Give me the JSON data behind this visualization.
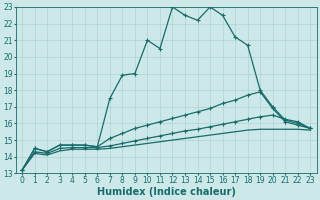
{
  "xlabel": "Humidex (Indice chaleur)",
  "xlim": [
    -0.5,
    23.5
  ],
  "ylim": [
    13,
    23
  ],
  "xticks": [
    0,
    1,
    2,
    3,
    4,
    5,
    6,
    7,
    8,
    9,
    10,
    11,
    12,
    13,
    14,
    15,
    16,
    17,
    18,
    19,
    20,
    21,
    22,
    23
  ],
  "yticks": [
    13,
    14,
    15,
    16,
    17,
    18,
    19,
    20,
    21,
    22,
    23
  ],
  "bg_color": "#cce8e8",
  "line_color": "#1a6b6b",
  "grid_color": "#aacccc",
  "line1_y": [
    13.2,
    14.5,
    14.3,
    14.7,
    14.7,
    14.7,
    14.6,
    17.5,
    18.9,
    19.0,
    21.0,
    20.5,
    23.0,
    22.5,
    22.2,
    23.0,
    22.5,
    21.2,
    20.7,
    18.0,
    17.0,
    16.2,
    16.0,
    15.7
  ],
  "line2_y": [
    13.2,
    14.5,
    14.3,
    14.7,
    14.7,
    14.7,
    14.6,
    15.1,
    15.4,
    15.7,
    15.9,
    16.1,
    16.3,
    16.5,
    16.7,
    16.9,
    17.2,
    17.4,
    17.7,
    17.9,
    16.9,
    16.1,
    15.9,
    15.7
  ],
  "line3_y": [
    13.2,
    14.2,
    14.1,
    14.35,
    14.45,
    14.45,
    14.45,
    14.5,
    14.6,
    14.7,
    14.8,
    14.9,
    15.0,
    15.1,
    15.2,
    15.3,
    15.4,
    15.5,
    15.6,
    15.65,
    15.65,
    15.65,
    15.65,
    15.6
  ],
  "line4_y": [
    13.2,
    14.3,
    14.2,
    14.5,
    14.55,
    14.55,
    14.55,
    14.65,
    14.8,
    14.95,
    15.1,
    15.25,
    15.4,
    15.55,
    15.65,
    15.8,
    15.95,
    16.1,
    16.25,
    16.4,
    16.5,
    16.25,
    16.1,
    15.7
  ],
  "linewidth": 0.9,
  "markersize": 3.5,
  "tick_fontsize": 5.5,
  "xlabel_fontsize": 7
}
